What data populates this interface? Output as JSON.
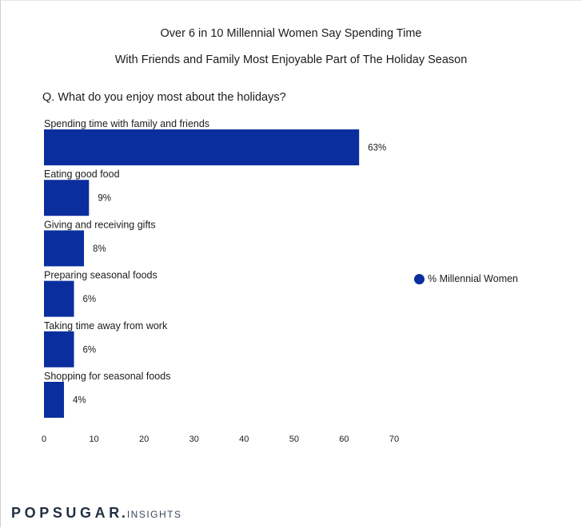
{
  "header": {
    "title_line1": "Over 6 in 10 Millennial Women Say Spending Time",
    "title_line2": "With Friends and Family Most Enjoyable Part of The Holiday Season",
    "question": "Q. What do you enjoy most about the holidays?"
  },
  "legend": {
    "label": "% Millennial Women"
  },
  "brand": {
    "name": "POPSUGAR",
    "dot": ".",
    "sub": "INSIGHTS"
  },
  "colors": {
    "bar": "#0a2e9e"
  },
  "chart_data": {
    "type": "bar",
    "orientation": "horizontal",
    "title": "Over 6 in 10 Millennial Women Say Spending Time With Friends and Family Most Enjoyable Part of The Holiday Season",
    "categories": [
      "Spending time with family and friends",
      "Eating good food",
      "Giving and receiving gifts",
      "Preparing seasonal foods",
      "Taking time away from work",
      "Shopping for seasonal foods"
    ],
    "series": [
      {
        "name": "% Millennial Women",
        "values": [
          63,
          9,
          8,
          6,
          6,
          4
        ]
      }
    ],
    "value_labels": [
      "63%",
      "9%",
      "8%",
      "6%",
      "6%",
      "4%"
    ],
    "xticks": [
      "0",
      "10",
      "20",
      "30",
      "40",
      "50",
      "60",
      "70"
    ],
    "xlim": [
      0,
      70
    ],
    "grid": false,
    "legend_position": "right"
  }
}
